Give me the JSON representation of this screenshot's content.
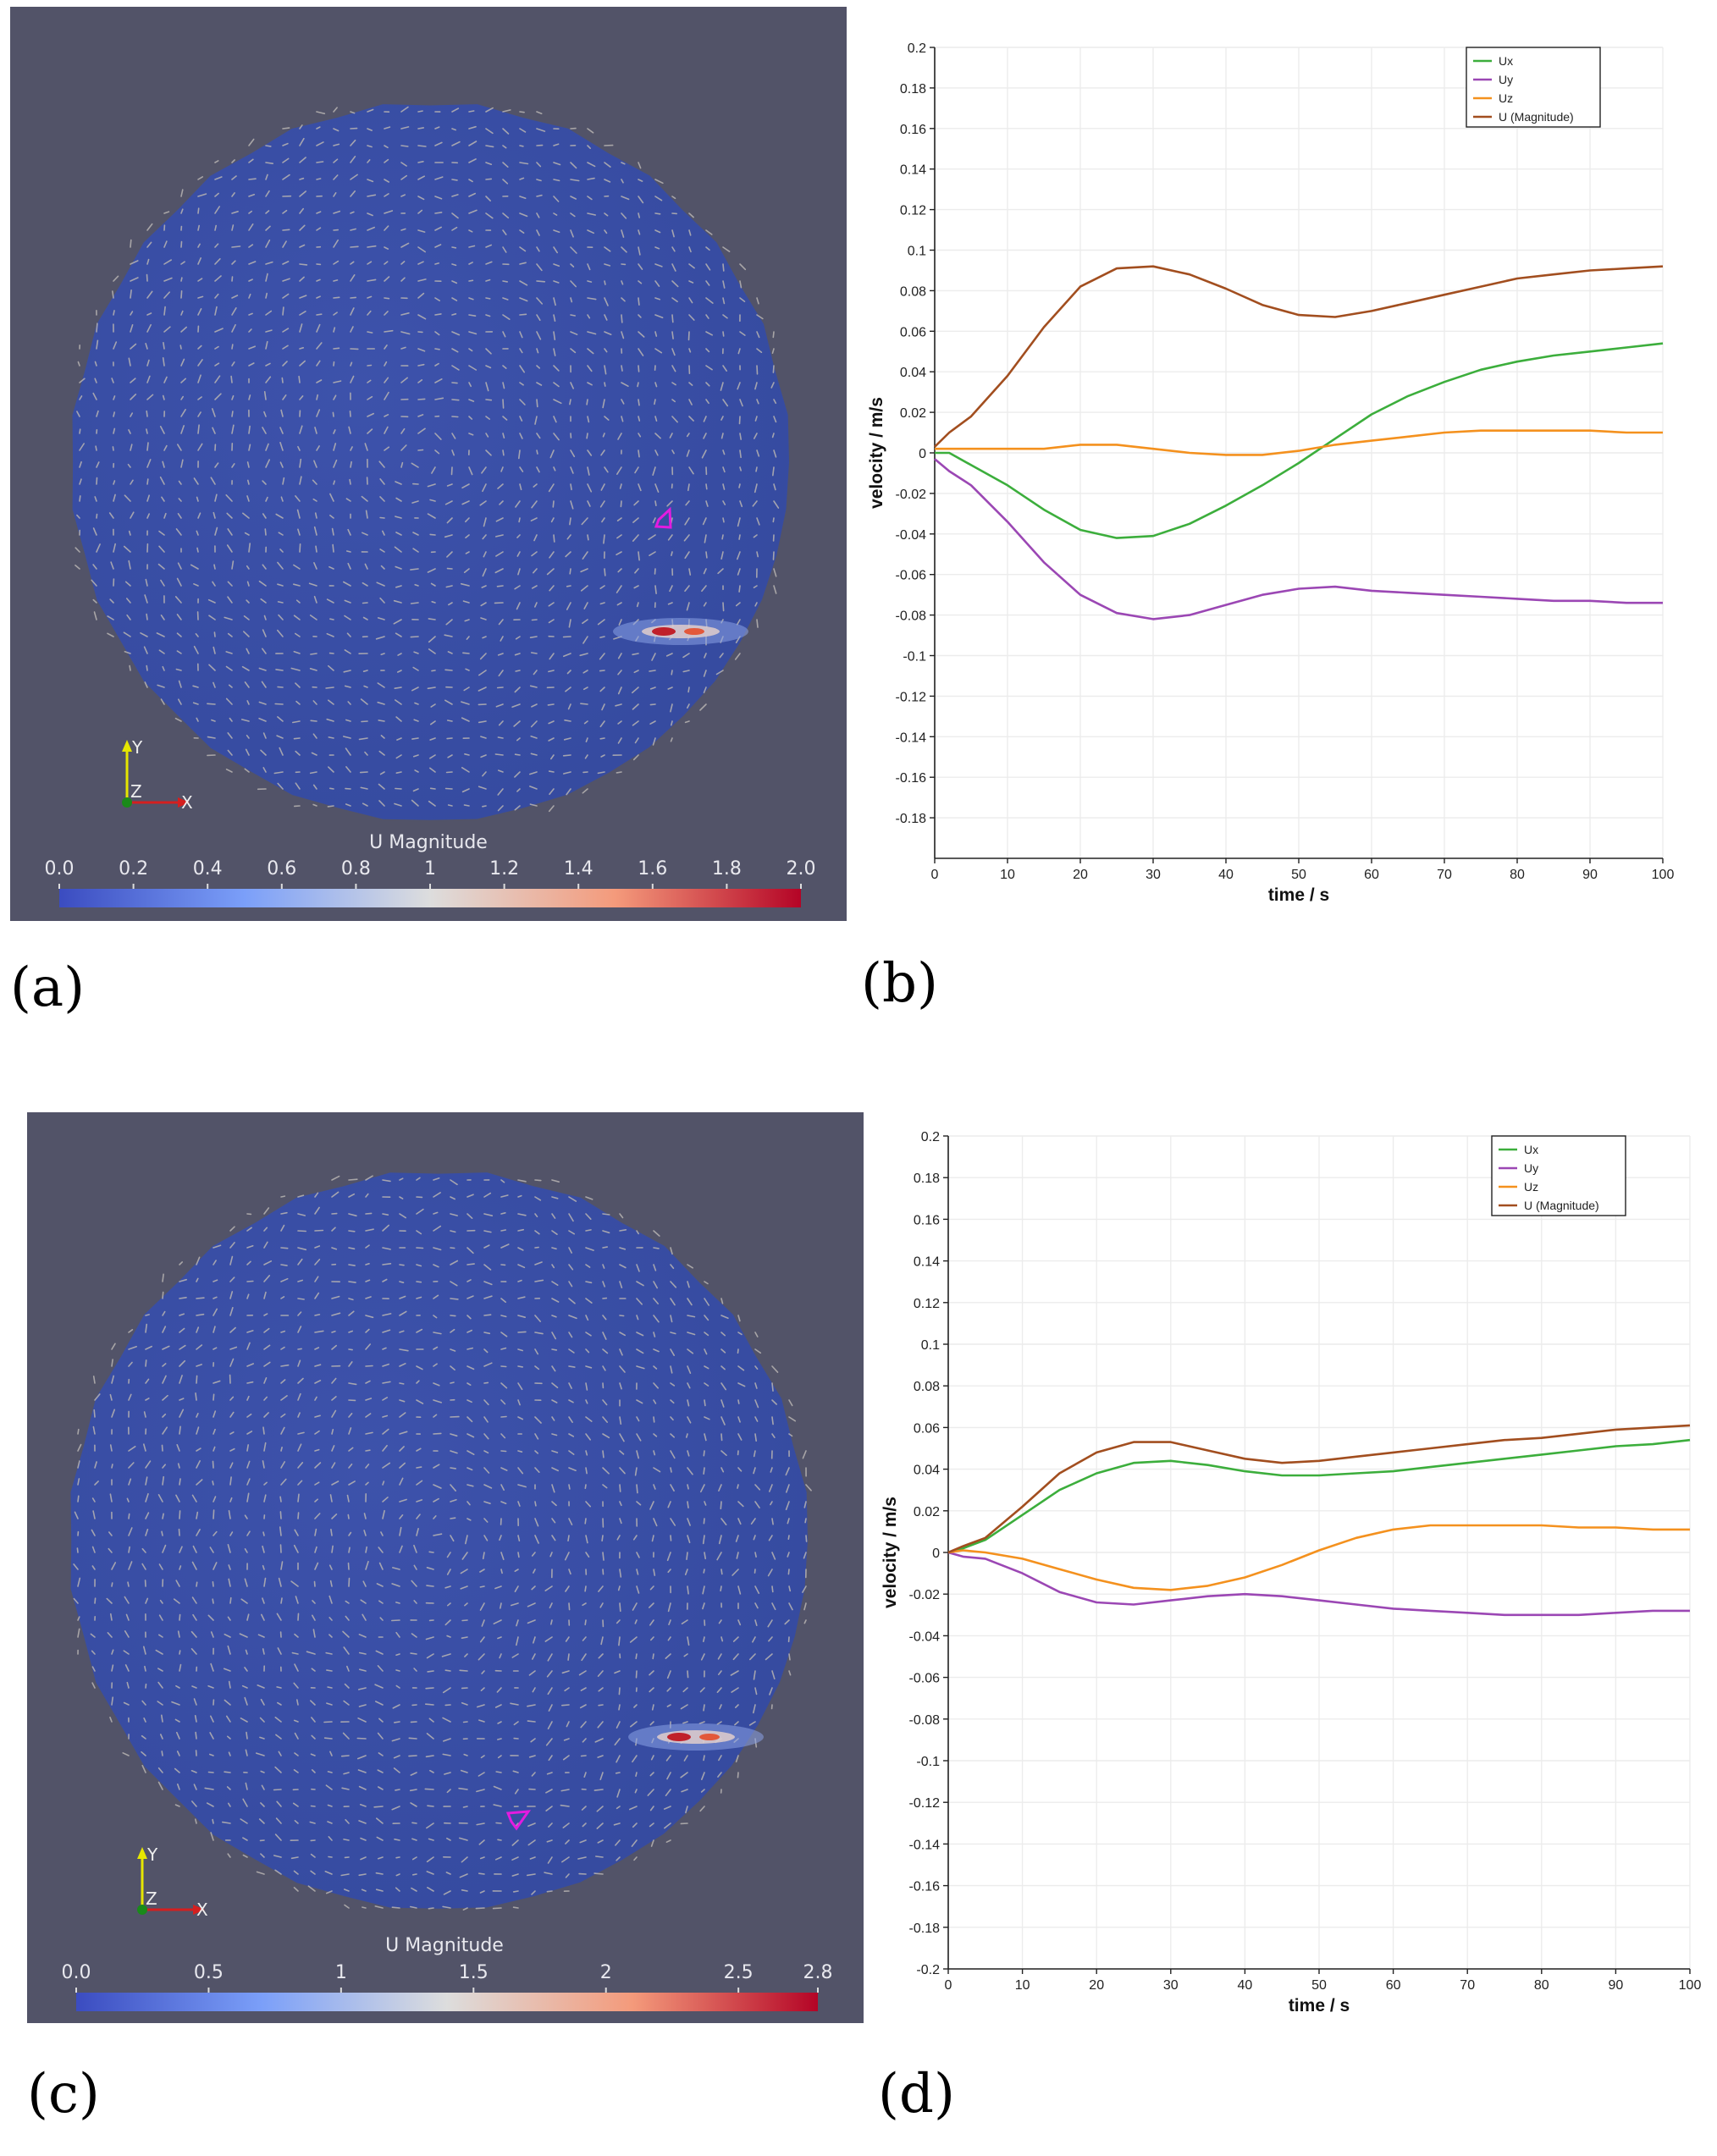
{
  "panels": {
    "a": {
      "label": "(a)",
      "colorbar_title": "U Magnitude",
      "colorbar_ticks": [
        "0.0",
        "0.2",
        "0.4",
        "0.6",
        "0.8",
        "1",
        "1.2",
        "1.4",
        "1.6",
        "1.8",
        "2.0"
      ],
      "axes_labels": {
        "y": "Y",
        "z": "Z",
        "x": "X"
      }
    },
    "b": {
      "label": "(b)"
    },
    "c": {
      "label": "(c)",
      "colorbar_title": "U Magnitude",
      "colorbar_ticks": [
        "0.0",
        "0.5",
        "1",
        "1.5",
        "2",
        "2.5",
        "2.8"
      ],
      "axes_labels": {
        "y": "Y",
        "z": "Z",
        "x": "X"
      }
    },
    "d": {
      "label": "(d)"
    }
  },
  "colors": {
    "Ux": "#3cae3c",
    "Uy": "#9b47b4",
    "Uz": "#f4911e",
    "Umag": "#a24e1f",
    "background": "#525368",
    "field": "#3a50a8"
  },
  "chart_data": [
    {
      "type": "line",
      "panel": "b",
      "xlabel": "time / s",
      "ylabel": "velocity / m/s",
      "xlim": [
        0,
        100
      ],
      "ylim": [
        -0.2,
        0.2
      ],
      "x_ticks": [
        "0",
        "10",
        "20",
        "30",
        "40",
        "50",
        "60",
        "70",
        "80",
        "90",
        "100"
      ],
      "y_ticks": [
        "0.2",
        "0.18",
        "0.16",
        "0.14",
        "0.12",
        "0.1",
        "0.08",
        "0.06",
        "0.04",
        "0.02",
        "0",
        "-0.02",
        "-0.04",
        "-0.06",
        "-0.08",
        "-0.1",
        "-0.12",
        "-0.14",
        "-0.16",
        "-0.18"
      ],
      "legend": [
        "Ux",
        "Uy",
        "Uz",
        "U (Magnitude)"
      ],
      "x": [
        0,
        2,
        5,
        10,
        15,
        20,
        25,
        30,
        35,
        40,
        45,
        50,
        55,
        60,
        65,
        70,
        75,
        80,
        85,
        90,
        95,
        100
      ],
      "series": [
        {
          "name": "Ux",
          "color": "#3cae3c",
          "values": [
            0,
            0,
            -0.006,
            -0.016,
            -0.028,
            -0.038,
            -0.042,
            -0.041,
            -0.035,
            -0.026,
            -0.016,
            -0.005,
            0.007,
            0.019,
            0.028,
            0.035,
            0.041,
            0.045,
            0.048,
            0.05,
            0.052,
            0.054
          ]
        },
        {
          "name": "Uy",
          "color": "#9b47b4",
          "values": [
            -0.003,
            -0.009,
            -0.016,
            -0.034,
            -0.054,
            -0.07,
            -0.079,
            -0.082,
            -0.08,
            -0.075,
            -0.07,
            -0.067,
            -0.066,
            -0.068,
            -0.069,
            -0.07,
            -0.071,
            -0.072,
            -0.073,
            -0.073,
            -0.074,
            -0.074
          ]
        },
        {
          "name": "Uz",
          "color": "#f4911e",
          "values": [
            0.002,
            0.002,
            0.002,
            0.002,
            0.002,
            0.004,
            0.004,
            0.002,
            0,
            -0.001,
            -0.001,
            0.001,
            0.004,
            0.006,
            0.008,
            0.01,
            0.011,
            0.011,
            0.011,
            0.011,
            0.01,
            0.01
          ]
        },
        {
          "name": "U (Magnitude)",
          "color": "#a24e1f",
          "values": [
            0.003,
            0.01,
            0.018,
            0.038,
            0.062,
            0.082,
            0.091,
            0.092,
            0.088,
            0.081,
            0.073,
            0.068,
            0.067,
            0.07,
            0.074,
            0.078,
            0.082,
            0.086,
            0.088,
            0.09,
            0.091,
            0.092
          ]
        }
      ]
    },
    {
      "type": "line",
      "panel": "d",
      "xlabel": "time / s",
      "ylabel": "velocity / m/s",
      "xlim": [
        0,
        100
      ],
      "ylim": [
        -0.2,
        0.2
      ],
      "x_ticks": [
        "0",
        "10",
        "20",
        "30",
        "40",
        "50",
        "60",
        "70",
        "80",
        "90",
        "100"
      ],
      "y_ticks": [
        "0.2",
        "0.18",
        "0.16",
        "0.14",
        "0.12",
        "0.1",
        "0.08",
        "0.06",
        "0.04",
        "0.02",
        "0",
        "-0.02",
        "-0.04",
        "-0.06",
        "-0.08",
        "-0.1",
        "-0.12",
        "-0.14",
        "-0.16",
        "-0.18",
        "-0.2"
      ],
      "legend": [
        "Ux",
        "Uy",
        "Uz",
        "U (Magnitude)"
      ],
      "x": [
        0,
        2,
        5,
        10,
        15,
        20,
        25,
        30,
        35,
        40,
        45,
        50,
        55,
        60,
        65,
        70,
        75,
        80,
        85,
        90,
        95,
        100
      ],
      "series": [
        {
          "name": "Ux",
          "color": "#3cae3c",
          "values": [
            0,
            0.002,
            0.006,
            0.018,
            0.03,
            0.038,
            0.043,
            0.044,
            0.042,
            0.039,
            0.037,
            0.037,
            0.038,
            0.039,
            0.041,
            0.043,
            0.045,
            0.047,
            0.049,
            0.051,
            0.052,
            0.054
          ]
        },
        {
          "name": "Uy",
          "color": "#9b47b4",
          "values": [
            0,
            -0.002,
            -0.003,
            -0.01,
            -0.019,
            -0.024,
            -0.025,
            -0.023,
            -0.021,
            -0.02,
            -0.021,
            -0.023,
            -0.025,
            -0.027,
            -0.028,
            -0.029,
            -0.03,
            -0.03,
            -0.03,
            -0.029,
            -0.028,
            -0.028
          ]
        },
        {
          "name": "Uz",
          "color": "#f4911e",
          "values": [
            0,
            0.001,
            0,
            -0.003,
            -0.008,
            -0.013,
            -0.017,
            -0.018,
            -0.016,
            -0.012,
            -0.006,
            0.001,
            0.007,
            0.011,
            0.013,
            0.013,
            0.013,
            0.013,
            0.012,
            0.012,
            0.011,
            0.011
          ]
        },
        {
          "name": "U (Magnitude)",
          "color": "#a24e1f",
          "values": [
            0,
            0.003,
            0.007,
            0.022,
            0.038,
            0.048,
            0.053,
            0.053,
            0.049,
            0.045,
            0.043,
            0.044,
            0.046,
            0.048,
            0.05,
            0.052,
            0.054,
            0.055,
            0.057,
            0.059,
            0.06,
            0.061
          ]
        }
      ]
    }
  ]
}
